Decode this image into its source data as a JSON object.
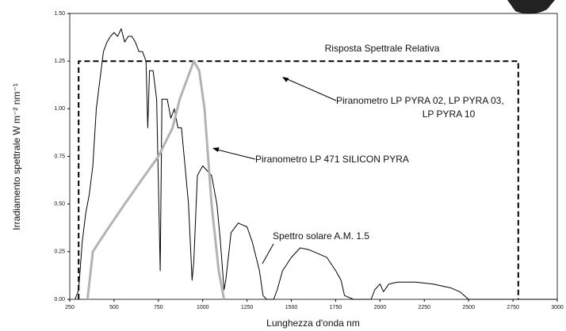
{
  "chart_data": {
    "type": "line",
    "xlabel": "Lunghezza d'onda nm",
    "ylabel": "Irradiamento spettrale W m⁻² nm⁻¹",
    "xlim": [
      250,
      3000
    ],
    "xticks": [
      250,
      500,
      750,
      1000,
      1250,
      1500,
      1750,
      2000,
      2250,
      2500,
      2750,
      3000
    ],
    "ylim": [
      0,
      1.5
    ],
    "yticks": [
      {
        "value": 0,
        "label": "0.00"
      },
      {
        "value": 0.25,
        "label": "0.25"
      },
      {
        "value": 0.5,
        "label": "0.50"
      },
      {
        "value": 0.75,
        "label": "0.75"
      },
      {
        "value": 1,
        "label": "1.00"
      },
      {
        "value": 1.25,
        "label": "1.25"
      },
      {
        "value": 1.5,
        "label": "1.50"
      }
    ],
    "annotations": [
      "Risposta Spettrale Relativa",
      "Piranometro LP PYRA 02, LP PYRA 03,",
      "LP PYRA 10",
      "Piranometro LP 471 SILICON PYRA",
      "Spettro solare A.M. 1.5"
    ],
    "series": [
      {
        "name": "Spettro solare A.M. 1.5",
        "color": "#000000",
        "dashed": false,
        "width": 1,
        "x": [
          280,
          300,
          320,
          340,
          360,
          380,
          400,
          420,
          440,
          460,
          480,
          500,
          520,
          540,
          560,
          580,
          600,
          620,
          640,
          660,
          680,
          690,
          700,
          720,
          740,
          760,
          770,
          800,
          820,
          840,
          860,
          880,
          900,
          920,
          940,
          950,
          970,
          1000,
          1050,
          1080,
          1100,
          1120,
          1130,
          1160,
          1200,
          1250,
          1280,
          1320,
          1340,
          1360,
          1400,
          1420,
          1450,
          1500,
          1550,
          1600,
          1650,
          1700,
          1750,
          1780,
          1800,
          1850,
          1950,
          1970,
          2000,
          2020,
          2050,
          2100,
          2200,
          2300,
          2400,
          2450,
          2500,
          3000
        ],
        "values": [
          0,
          0.05,
          0.3,
          0.45,
          0.55,
          0.7,
          1.0,
          1.15,
          1.3,
          1.35,
          1.38,
          1.4,
          1.38,
          1.42,
          1.35,
          1.38,
          1.38,
          1.35,
          1.3,
          1.3,
          1.25,
          0.9,
          1.2,
          1.2,
          1.05,
          0.15,
          1.05,
          1.05,
          0.95,
          1.0,
          0.9,
          0.9,
          0.7,
          0.5,
          0.1,
          0.2,
          0.65,
          0.7,
          0.65,
          0.5,
          0.3,
          0.05,
          0.1,
          0.35,
          0.4,
          0.38,
          0.3,
          0.15,
          0.02,
          0,
          0,
          0.05,
          0.15,
          0.22,
          0.27,
          0.26,
          0.24,
          0.22,
          0.15,
          0.1,
          0.02,
          0,
          0,
          0.05,
          0.08,
          0.04,
          0.08,
          0.09,
          0.09,
          0.08,
          0.06,
          0.04,
          0,
          0
        ]
      },
      {
        "name": "Piranometro LP PYRA 02, LP PYRA 03, LP PYRA 10",
        "color": "#000000",
        "dashed": true,
        "width": 2,
        "x": [
          300,
          300,
          2780,
          2780
        ],
        "values": [
          0,
          1.25,
          1.25,
          0
        ]
      },
      {
        "name": "Piranometro LP 471 SILICON PYRA",
        "color": "#b3b3b3",
        "dashed": false,
        "width": 3,
        "x": [
          350,
          380,
          450,
          560,
          650,
          750,
          830,
          870,
          910,
          950,
          980,
          1010,
          1050,
          1090,
          1120
        ],
        "values": [
          0,
          0.25,
          0.35,
          0.5,
          0.62,
          0.75,
          0.9,
          1.05,
          1.15,
          1.25,
          1.2,
          1.0,
          0.5,
          0.15,
          0
        ]
      }
    ]
  }
}
